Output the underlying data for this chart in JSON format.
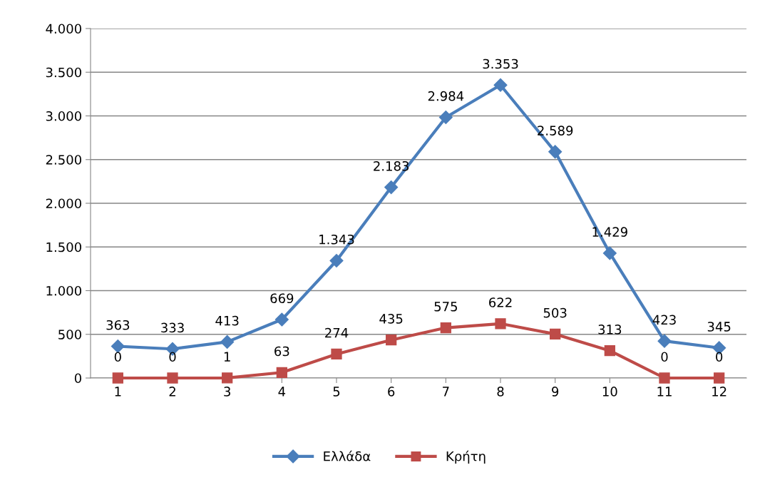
{
  "chart_data": {
    "type": "line",
    "categories": [
      "1",
      "2",
      "3",
      "4",
      "5",
      "6",
      "7",
      "8",
      "9",
      "10",
      "11",
      "12"
    ],
    "series": [
      {
        "name": "Ελλάδα",
        "color": "#4a7ebb",
        "marker": "diamond",
        "values": [
          363,
          333,
          413,
          669,
          1343,
          2183,
          2984,
          3353,
          2589,
          1429,
          423,
          345
        ],
        "value_labels": [
          "363",
          "333",
          "413",
          "669",
          "1.343",
          "2.183",
          "2.984",
          "3.353",
          "2.589",
          "1.429",
          "423",
          "345"
        ]
      },
      {
        "name": "Κρήτη",
        "color": "#be4b48",
        "marker": "square",
        "values": [
          0,
          0,
          1,
          63,
          274,
          435,
          575,
          622,
          503,
          313,
          0,
          0
        ],
        "value_labels": [
          "0",
          "0",
          "1",
          "63",
          "274",
          "435",
          "575",
          "622",
          "503",
          "313",
          "0",
          "0"
        ]
      }
    ],
    "ylim": [
      0,
      4000
    ],
    "yticks": [
      {
        "value": 0,
        "label": "0"
      },
      {
        "value": 500,
        "label": "500"
      },
      {
        "value": 1000,
        "label": "1.000"
      },
      {
        "value": 1500,
        "label": "1.500"
      },
      {
        "value": 2000,
        "label": "2.000"
      },
      {
        "value": 2500,
        "label": "2.500"
      },
      {
        "value": 3000,
        "label": "3.000"
      },
      {
        "value": 3500,
        "label": "3.500"
      },
      {
        "value": 4000,
        "label": "4.000"
      }
    ],
    "grid": "y",
    "legend": "bottom",
    "line_style": "solid"
  }
}
